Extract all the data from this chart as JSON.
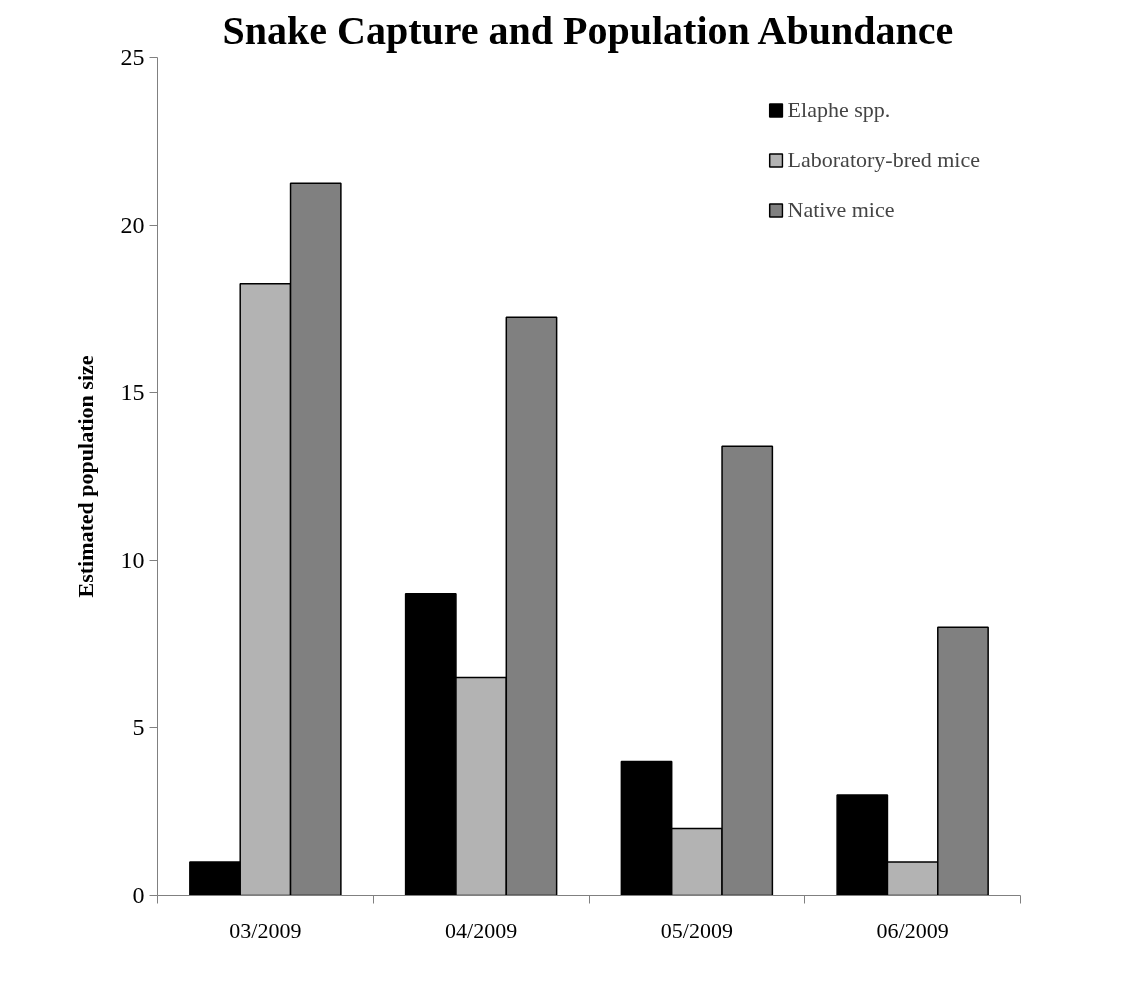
{
  "chart_data": {
    "type": "bar",
    "title": "Snake Capture and Population Abundance",
    "ylabel": "Estimated population size",
    "categories": [
      "03/2009",
      "04/2009",
      "05/2009",
      "06/2009"
    ],
    "series": [
      {
        "name": "Elaphe spp.",
        "color": "#000000",
        "values": [
          1,
          9,
          4,
          3
        ]
      },
      {
        "name": "Laboratory-bred mice",
        "color": "#b3b3b3",
        "values": [
          18.25,
          6.5,
          2,
          1
        ]
      },
      {
        "name": "Native mice",
        "color": "#808080",
        "values": [
          21.25,
          17.25,
          13.4,
          8
        ]
      }
    ],
    "ylim": [
      0,
      25
    ],
    "yticks": [
      0,
      5,
      10,
      15,
      20,
      25
    ],
    "grid": false,
    "legend": "top right"
  }
}
